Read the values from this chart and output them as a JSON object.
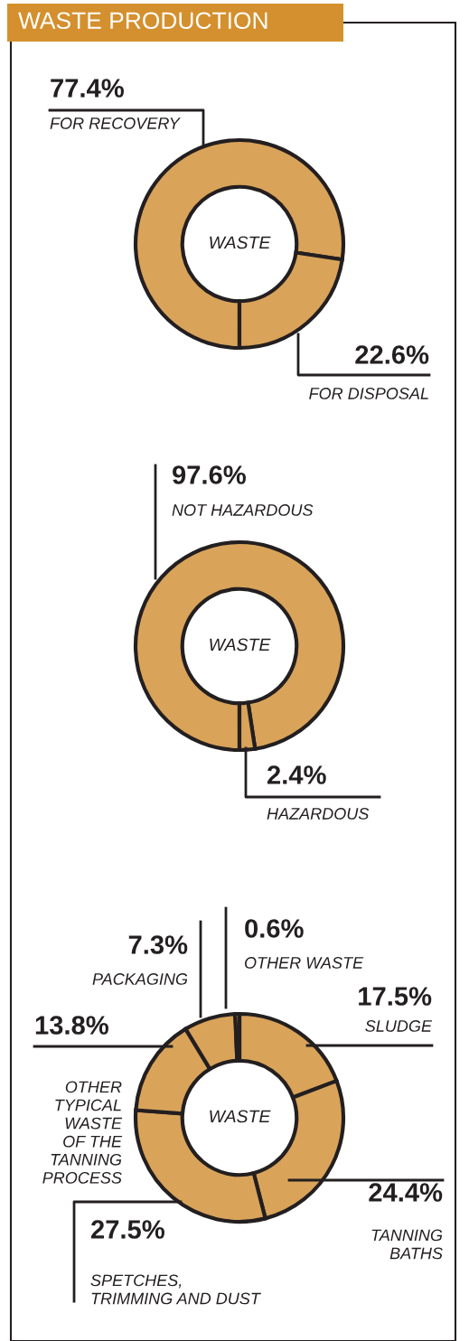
{
  "chart_data": [
    {
      "type": "donut",
      "title": "WASTE PRODUCTION",
      "categories": [
        "FOR RECOVERY",
        "FOR DISPOSAL"
      ],
      "values": [
        77.4,
        22.6
      ],
      "colors": [
        "#d9a35a",
        "#d9a35a"
      ],
      "value_labels": [
        "77.4%",
        "22.6%"
      ],
      "annotations": [
        "WASTE"
      ]
    },
    {
      "type": "donut",
      "categories": [
        "NOT HAZARDOUS",
        "HAZARDOUS"
      ],
      "values": [
        97.6,
        2.4
      ],
      "colors": [
        "#d9a35a",
        "#d9a35a"
      ],
      "value_labels": [
        "97.6%",
        "2.4%"
      ],
      "annotations": [
        "WASTE"
      ]
    },
    {
      "type": "donut",
      "categories": [
        "SLUDGE",
        "TANNING\nBATHS",
        "SPETCHES,\nTRIMMING AND DUST",
        "OTHER\nTYPICAL\nWASTE\nOF THE\nTANNING\nPROCESS",
        "PACKAGING",
        "OTHER WASTE"
      ],
      "values": [
        17.5,
        24.4,
        27.5,
        13.8,
        7.3,
        0.6
      ],
      "colors": [
        "#d9a35a",
        "#d9a35a",
        "#d9a35a",
        "#d9a35a",
        "#d9a35a",
        "#d9a35a"
      ],
      "value_labels": [
        "17.5%",
        "24.4%",
        "27.5%",
        "13.8%",
        "7.3%",
        "0.6%"
      ],
      "annotations": [
        "WASTE"
      ]
    }
  ]
}
